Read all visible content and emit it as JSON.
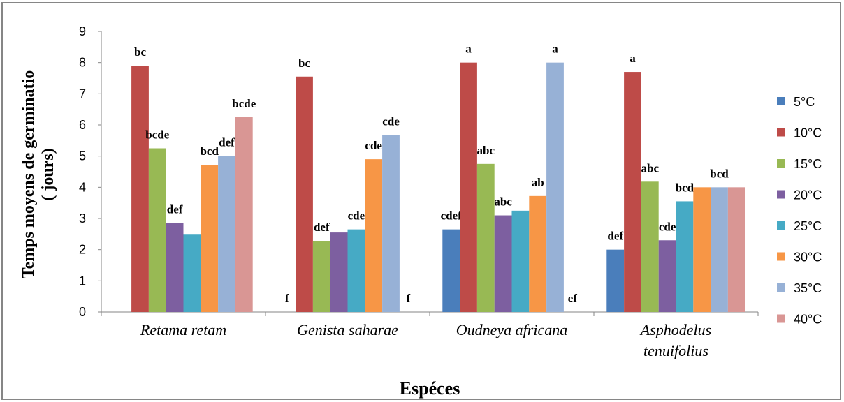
{
  "chart_data": {
    "type": "bar",
    "xlabel": "Espéces",
    "ylabel_lines": [
      "Temps moyens de  germinatio",
      "( jours)"
    ],
    "ylim": [
      0,
      9
    ],
    "yticks": [
      0,
      1,
      2,
      3,
      4,
      5,
      6,
      7,
      8,
      9
    ],
    "grid": false,
    "legend_position": "right",
    "categories": [
      [
        "Retama retam"
      ],
      [
        "Genista saharae"
      ],
      [
        "Oudneya africana"
      ],
      [
        "Asphodelus",
        "tenuifolius"
      ]
    ],
    "series": [
      {
        "name": "5°C",
        "color": "#4a7ebb",
        "values": [
          0,
          0,
          2.65,
          2.0
        ],
        "labels": [
          "",
          "f",
          "cdef",
          "def"
        ]
      },
      {
        "name": "10°C",
        "color": "#be4b48",
        "values": [
          7.9,
          7.55,
          8.0,
          7.7
        ],
        "labels": [
          "bc",
          "bc",
          "a",
          "a"
        ]
      },
      {
        "name": "15°C",
        "color": "#98b954",
        "values": [
          5.25,
          2.28,
          4.75,
          4.18
        ],
        "labels": [
          "bcde",
          "def",
          "abc",
          "abc"
        ]
      },
      {
        "name": "20°C",
        "color": "#7d5fa0",
        "values": [
          2.85,
          2.55,
          3.1,
          2.3
        ],
        "labels": [
          "def",
          "",
          "abc",
          "cde"
        ]
      },
      {
        "name": "25°C",
        "color": "#46aac5",
        "values": [
          2.48,
          2.65,
          3.25,
          3.55
        ],
        "labels": [
          "",
          "cde",
          "",
          "bcd"
        ]
      },
      {
        "name": "30°C",
        "color": "#f79646",
        "values": [
          4.72,
          4.9,
          3.72,
          4.0
        ],
        "labels": [
          "bcd",
          "cde",
          "ab",
          ""
        ]
      },
      {
        "name": "35°C",
        "color": "#97b1d6",
        "values": [
          5.0,
          5.68,
          8.0,
          4.0
        ],
        "labels": [
          "def",
          "cde",
          "a",
          "bcd"
        ]
      },
      {
        "name": "40°C",
        "color": "#d99694",
        "values": [
          6.25,
          0,
          0,
          4.0
        ],
        "labels": [
          "bcde",
          "f",
          "ef",
          ""
        ]
      }
    ]
  }
}
